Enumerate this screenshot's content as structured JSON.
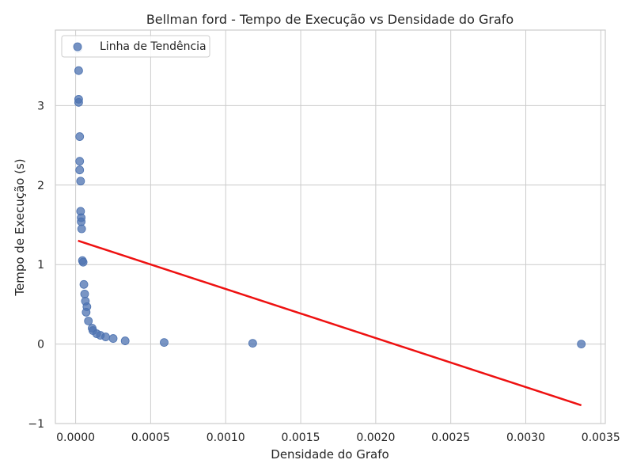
{
  "chart_data": {
    "type": "scatter",
    "title": "Bellman ford - Tempo de Execução vs Densidade do Grafo",
    "xlabel": "Densidade do Grafo",
    "ylabel": "Tempo de Execução (s)",
    "xlim": [
      -0.000135,
      0.00353
    ],
    "ylim": [
      -1.0,
      3.95
    ],
    "x_ticks": [
      "0.0000",
      "0.0005",
      "0.0010",
      "0.0015",
      "0.0020",
      "0.0025",
      "0.0030",
      "0.0035"
    ],
    "y_ticks": [
      "−1",
      "0",
      "1",
      "2",
      "3"
    ],
    "grid": true,
    "legend": {
      "position": "top-left",
      "entries": [
        "Linha de Tendência"
      ]
    },
    "series": [
      {
        "name": "",
        "kind": "scatter",
        "color": "#4c72b0",
        "points": [
          [
            1.6e-05,
            3.72
          ],
          [
            2e-05,
            3.44
          ],
          [
            2e-05,
            3.08
          ],
          [
            2e-05,
            3.04
          ],
          [
            2.7e-05,
            2.61
          ],
          [
            2.7e-05,
            2.3
          ],
          [
            2.7e-05,
            2.19
          ],
          [
            3.3e-05,
            2.05
          ],
          [
            3.3e-05,
            1.67
          ],
          [
            3.7e-05,
            1.59
          ],
          [
            3.7e-05,
            1.54
          ],
          [
            4e-05,
            1.45
          ],
          [
            4.5e-05,
            1.05
          ],
          [
            5e-05,
            1.03
          ],
          [
            5.5e-05,
            0.75
          ],
          [
            6e-05,
            0.63
          ],
          [
            6.5e-05,
            0.54
          ],
          [
            7.5e-05,
            0.47
          ],
          [
            7e-05,
            0.4
          ],
          [
            8.5e-05,
            0.29
          ],
          [
            0.00011,
            0.2
          ],
          [
            0.000115,
            0.17
          ],
          [
            0.00014,
            0.13
          ],
          [
            0.000165,
            0.11
          ],
          [
            0.0002,
            0.09
          ],
          [
            0.00025,
            0.07
          ],
          [
            0.00033,
            0.04
          ],
          [
            0.00059,
            0.02
          ],
          [
            0.00118,
            0.01
          ],
          [
            0.00337,
            0.0
          ]
        ]
      },
      {
        "name": "Linha de Tendência",
        "kind": "line",
        "color": "#ee1111",
        "points": [
          [
            1.6e-05,
            1.3
          ],
          [
            0.00337,
            -0.77
          ]
        ]
      }
    ]
  }
}
